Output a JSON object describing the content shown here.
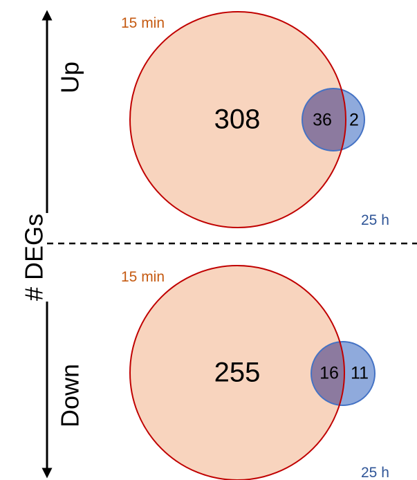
{
  "axis": {
    "label": "# DEGs"
  },
  "colors": {
    "large_fill": "#F8D4BE",
    "large_stroke": "#C00000",
    "small_fill": "#8FAADC",
    "small_stroke": "#4472C4",
    "overlap_fill": "#8C7A9F",
    "label_15min": "#C55A11",
    "label_25h": "#2F5597",
    "divider": "#000000"
  },
  "panels": [
    {
      "name": "up",
      "direction_label": "Up",
      "set_a_label": "15 min",
      "set_b_label": "25 h",
      "only_a": "308",
      "overlap": "36",
      "only_b": "2"
    },
    {
      "name": "down",
      "direction_label": "Down",
      "set_a_label": "15 min",
      "set_b_label": "25 h",
      "only_a": "255",
      "overlap": "16",
      "only_b": "11"
    }
  ]
}
